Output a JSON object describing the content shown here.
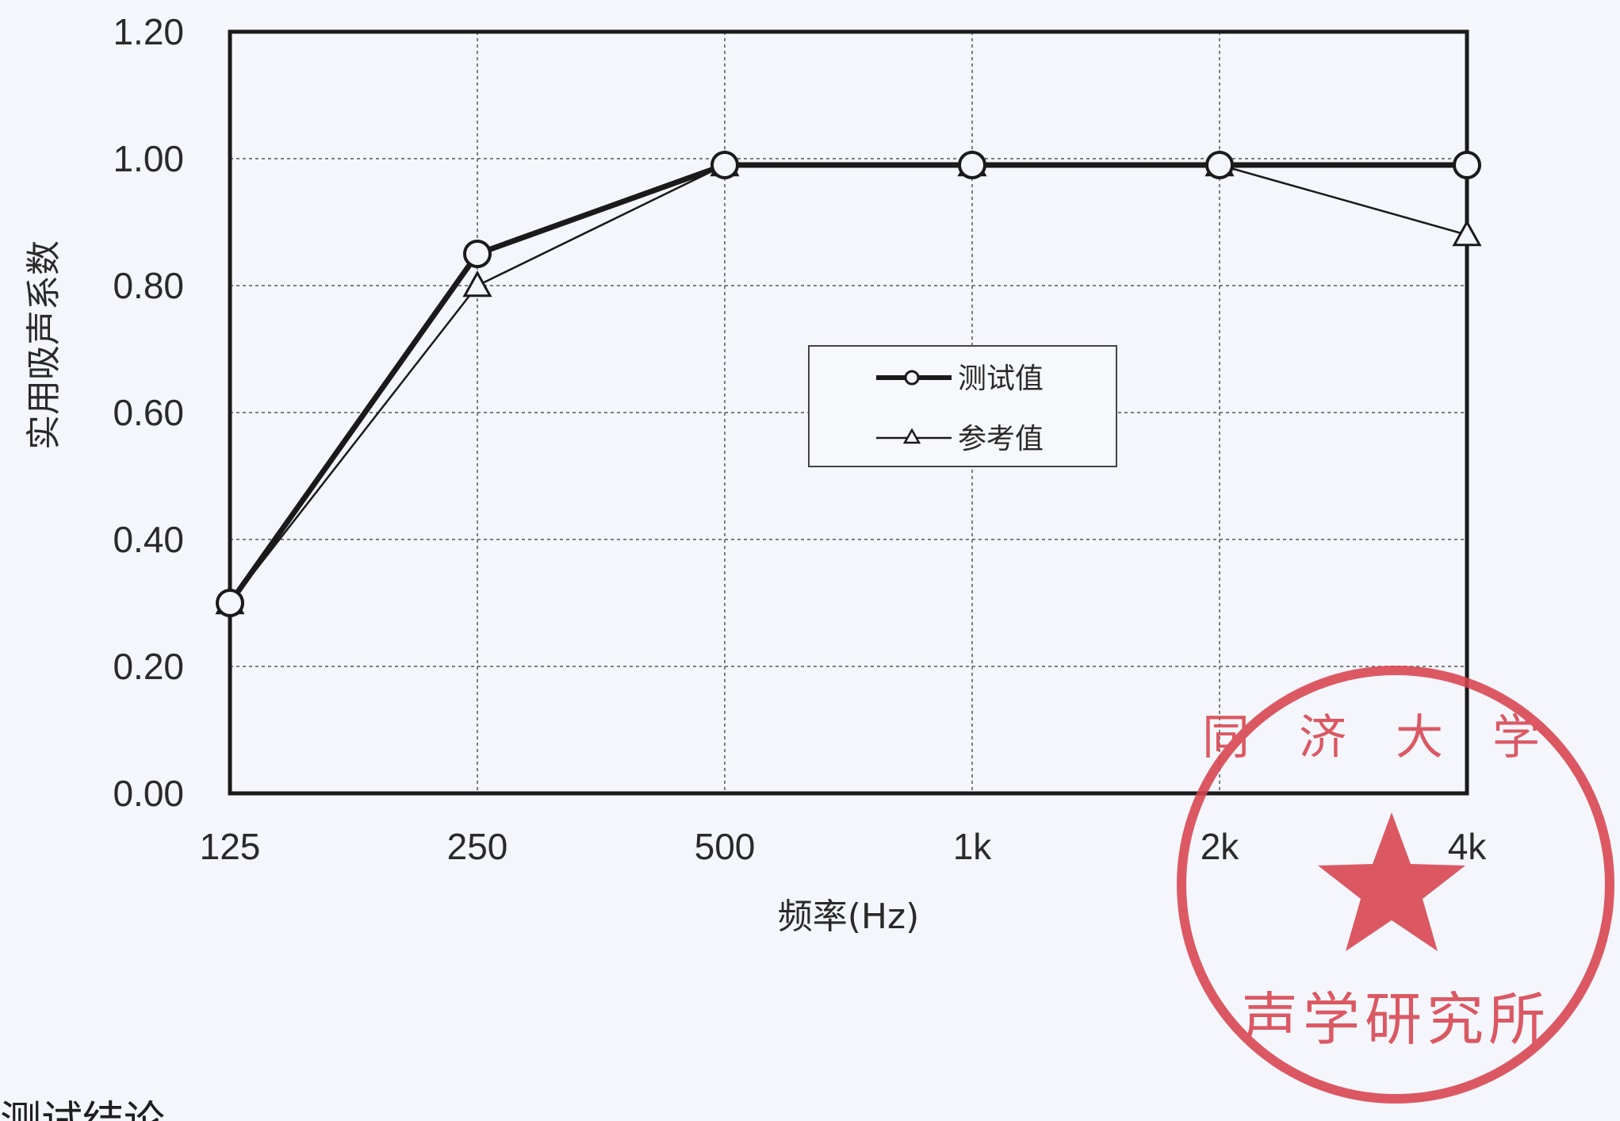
{
  "chart_data": {
    "type": "line",
    "title": "",
    "xlabel": "频率(Hz)",
    "ylabel": "实用吸声系数",
    "categories": [
      "125",
      "250",
      "500",
      "1k",
      "2k",
      "4k"
    ],
    "ylim": [
      0,
      1.2
    ],
    "yticks": [
      "0.00",
      "0.20",
      "0.40",
      "0.60",
      "0.80",
      "1.00",
      "1.20"
    ],
    "grid": true,
    "legend_position": "center-right",
    "series": [
      {
        "name": "测试值",
        "marker": "circle",
        "style": "thick",
        "values": [
          0.3,
          0.85,
          0.99,
          0.99,
          0.99,
          0.99
        ]
      },
      {
        "name": "参考值",
        "marker": "triangle",
        "style": "thin",
        "values": [
          0.3,
          0.8,
          0.99,
          0.99,
          0.99,
          0.88
        ]
      }
    ]
  },
  "stamp": {
    "color": "#d8434f",
    "top_text": "同济大学",
    "bottom_text": "声学研究所"
  },
  "footer": {
    "partial_heading": "测试结论"
  }
}
